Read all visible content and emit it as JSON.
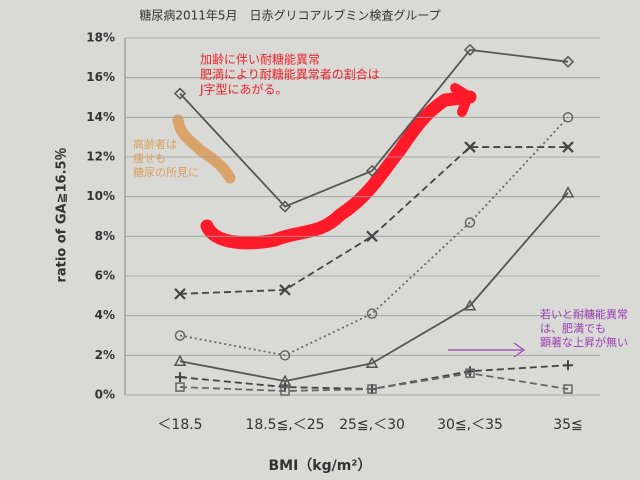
{
  "chart_data": {
    "type": "line",
    "title": "糖尿病2011年5月　日赤グリコアルブミン検査グループ",
    "y_label": "ratio of GA≧16.5％",
    "x_label": "BMI（kg/m²）",
    "categories": [
      "＜18.5",
      "18.5≦,＜25",
      "25≦,＜30",
      "30≦,＜35",
      "35≦"
    ],
    "ylim": [
      0,
      18
    ],
    "yticks": [
      {
        "value": 0,
        "label": "0%"
      },
      {
        "value": 2,
        "label": "2%"
      },
      {
        "value": 4,
        "label": "4%"
      },
      {
        "value": 6,
        "label": "6%"
      },
      {
        "value": 8,
        "label": "8%"
      },
      {
        "value": 10,
        "label": "10%"
      },
      {
        "value": 12,
        "label": "12%"
      },
      {
        "value": 14,
        "label": "14%"
      },
      {
        "value": 16,
        "label": "16%"
      },
      {
        "value": 18,
        "label": "18%"
      }
    ],
    "grid": true,
    "series": [
      {
        "color": "#555555",
        "marker": "diamond",
        "dash": "solid",
        "values": [
          15.2,
          9.5,
          11.3,
          17.4,
          16.8
        ]
      },
      {
        "color": "#444444",
        "marker": "x",
        "dash": "dashed",
        "values": [
          5.1,
          5.3,
          8.0,
          12.5,
          12.5
        ]
      },
      {
        "color": "#666666",
        "marker": "circle",
        "dash": "dotted",
        "values": [
          3.0,
          2.0,
          4.1,
          8.7,
          14.0
        ]
      },
      {
        "color": "#555555",
        "marker": "triangle",
        "dash": "solid",
        "values": [
          1.7,
          0.7,
          1.6,
          4.5,
          10.2
        ]
      },
      {
        "color": "#444444",
        "marker": "plus",
        "dash": "dashed",
        "values": [
          0.9,
          0.4,
          0.3,
          1.2,
          1.5
        ]
      },
      {
        "color": "#666666",
        "marker": "square",
        "dash": "dashed",
        "values": [
          0.4,
          0.2,
          0.3,
          1.1,
          0.3
        ]
      }
    ],
    "annotations": [
      {
        "color": "#e8242c",
        "lines": [
          "加齢に伴い耐糖能異常",
          "肥満により耐糖能異常者の割合は",
          "J字型にあがる。"
        ]
      },
      {
        "color": "#d9a060",
        "lines": [
          "高齢者は",
          "痩せも",
          "糖尿の所見に"
        ]
      },
      {
        "color": "#9b3fb5",
        "lines": [
          "若いと耐糖能異常",
          "は、肥満でも",
          "顕著な上昇が無い"
        ]
      }
    ]
  }
}
